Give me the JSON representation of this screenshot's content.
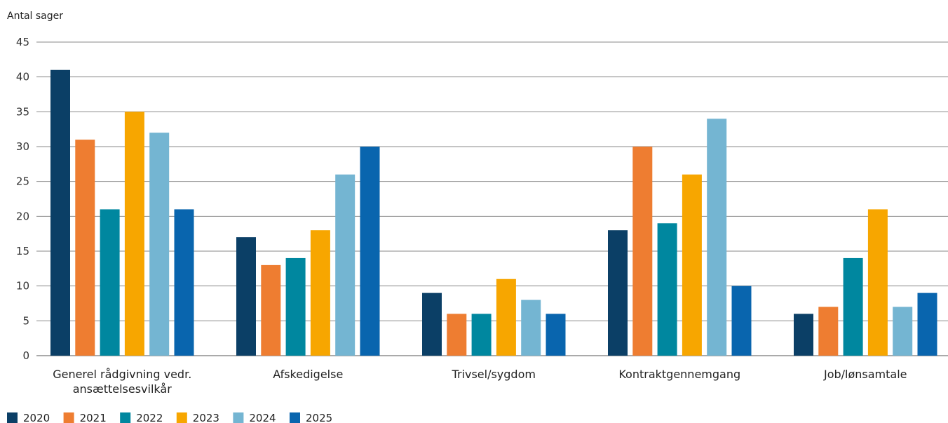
{
  "chart_data": {
    "type": "bar",
    "ylabel": "Antal sager",
    "ylim": [
      0,
      45
    ],
    "yticks": [
      0,
      5,
      10,
      15,
      20,
      25,
      30,
      35,
      40,
      45
    ],
    "grid": true,
    "legend": "bottom-left",
    "categories": [
      [
        "Generel rådgivning vedr.",
        "ansættelsesvilkår"
      ],
      [
        "Afskedigelse"
      ],
      [
        "Trivsel/sygdom"
      ],
      [
        "Kontraktgennemgang"
      ],
      [
        "Job/lønsamtale"
      ]
    ],
    "series": [
      {
        "name": "2020",
        "color": "#0b3f66",
        "values": [
          41,
          17,
          9,
          18,
          6
        ]
      },
      {
        "name": "2021",
        "color": "#ee7d31",
        "values": [
          31,
          13,
          6,
          30,
          7
        ]
      },
      {
        "name": "2022",
        "color": "#00879f",
        "values": [
          21,
          14,
          6,
          19,
          14
        ]
      },
      {
        "name": "2023",
        "color": "#f7a600",
        "values": [
          35,
          18,
          11,
          26,
          21
        ]
      },
      {
        "name": "2024",
        "color": "#74b5d2",
        "values": [
          32,
          26,
          8,
          34,
          7
        ]
      },
      {
        "name": "2025",
        "color": "#0965ae",
        "values": [
          21,
          30,
          6,
          10,
          9
        ]
      }
    ]
  }
}
